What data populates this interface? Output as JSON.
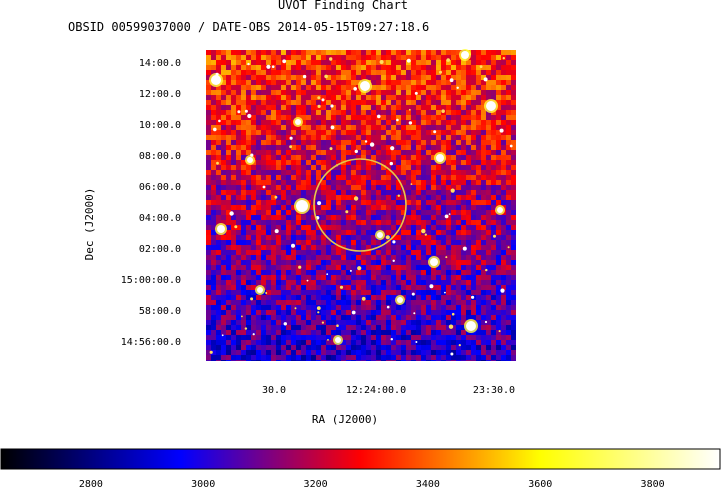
{
  "chart_data": {
    "type": "heatmap",
    "title": "UVOT Finding Chart",
    "subtitle": "OBSID 00599037000 / DATE-OBS 2014-05-15T09:27:18.6",
    "xlabel": "RA (J2000)",
    "ylabel": "Dec (J2000)",
    "x_ticks": [
      "30.0",
      "12:24:00.0",
      "23:30.0"
    ],
    "y_ticks": [
      "14:00.0",
      "12:00.0",
      "10:00.0",
      "08:00.0",
      "06:00.0",
      "04:00.0",
      "02:00.0",
      "15:00:00.0",
      "58:00.0",
      "14:56:00.0"
    ],
    "colorbar": {
      "ticks": [
        "2800",
        "3000",
        "3200",
        "3400",
        "3600",
        "3800"
      ],
      "min": 2640,
      "max": 3920,
      "colors": [
        "#000000",
        "#0000ff",
        "#ff0000",
        "#ffff00",
        "#ffffff"
      ]
    },
    "marker": {
      "shape": "circle",
      "color": "#e6c84b"
    }
  }
}
